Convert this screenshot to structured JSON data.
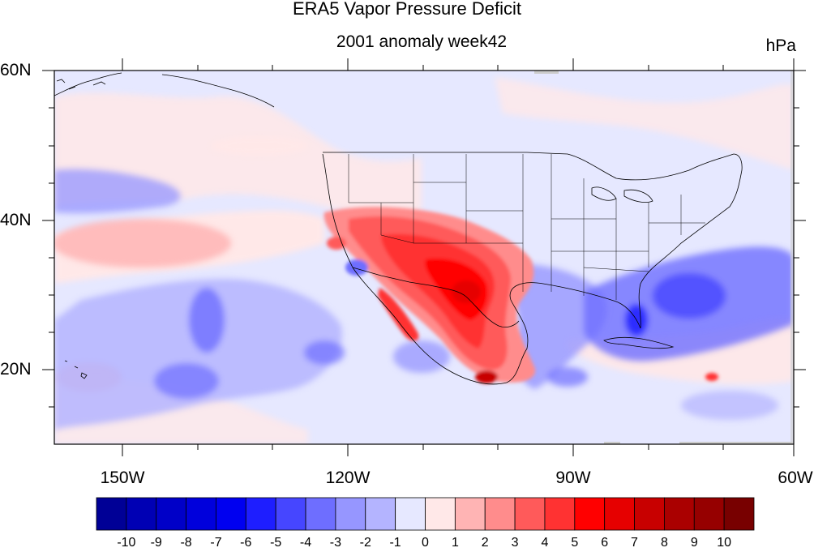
{
  "title": "ERA5 Vapor Pressure Deficit",
  "subtitle": "2001 anomaly week42",
  "units": "hPa",
  "axes": {
    "lon_labels": [
      "150W",
      "120W",
      "90W",
      "60W"
    ],
    "lat_labels": [
      "60N",
      "40N",
      "20N"
    ]
  },
  "map": {
    "lon_range": [
      -159,
      -60
    ],
    "lat_range": [
      10,
      60
    ],
    "background": "#e6e8ff"
  },
  "colorbar": {
    "labels": [
      "-10",
      "-9",
      "-8",
      "-7",
      "-6",
      "-5",
      "-4",
      "-3",
      "-2",
      "-1",
      "0",
      "1",
      "2",
      "3",
      "4",
      "5",
      "6",
      "7",
      "8",
      "9",
      "10"
    ],
    "colors": [
      "#000096",
      "#0000b4",
      "#0000c8",
      "#0000dc",
      "#0000f0",
      "#1e1eff",
      "#4646ff",
      "#6e6eff",
      "#9696ff",
      "#b4b4ff",
      "#e6e8ff",
      "#ffe8e8",
      "#ffb4b4",
      "#ff8c8c",
      "#ff5a5a",
      "#ff3232",
      "#ff0000",
      "#e60000",
      "#c80000",
      "#aa0000",
      "#960000",
      "#780000"
    ]
  }
}
